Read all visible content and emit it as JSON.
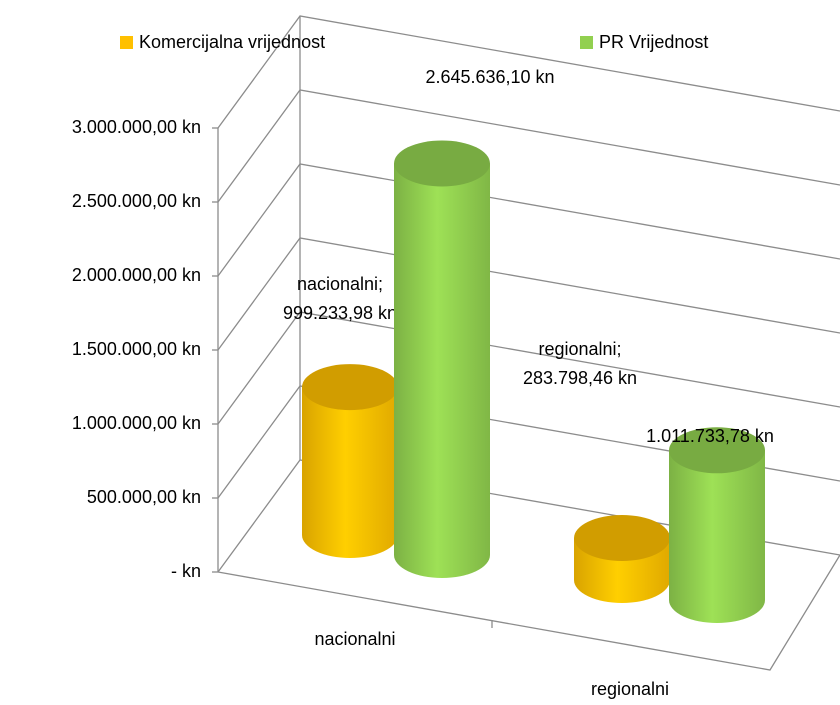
{
  "chart_data": {
    "type": "bar3d",
    "categories": [
      "nacionalni",
      "regionalni"
    ],
    "series": [
      {
        "name": "Komercijalna vrijednost",
        "color": "#ffc000",
        "values": [
          999233.98,
          283798.46
        ],
        "value_labels": [
          "nacionalni; 999.233,98 kn",
          "regionalni; 283.798,46 kn"
        ]
      },
      {
        "name": "PR Vrijednost",
        "color": "#92d050",
        "values": [
          2645636.1,
          1011733.78
        ],
        "value_labels": [
          "2.645.636,10 kn",
          "1.011.733,78 kn"
        ]
      }
    ],
    "ylim": [
      0,
      3000000
    ],
    "yticks": [
      {
        "value": 0,
        "label": "-   kn"
      },
      {
        "value": 500000,
        "label": "500.000,00 kn"
      },
      {
        "value": 1000000,
        "label": "1.000.000,00 kn"
      },
      {
        "value": 1500000,
        "label": "1.500.000,00 kn"
      },
      {
        "value": 2000000,
        "label": "2.000.000,00 kn"
      },
      {
        "value": 2500000,
        "label": "2.500.000,00 kn"
      },
      {
        "value": 3000000,
        "label": "3.000.000,00 kn"
      }
    ],
    "grid": true,
    "legend": "top"
  }
}
